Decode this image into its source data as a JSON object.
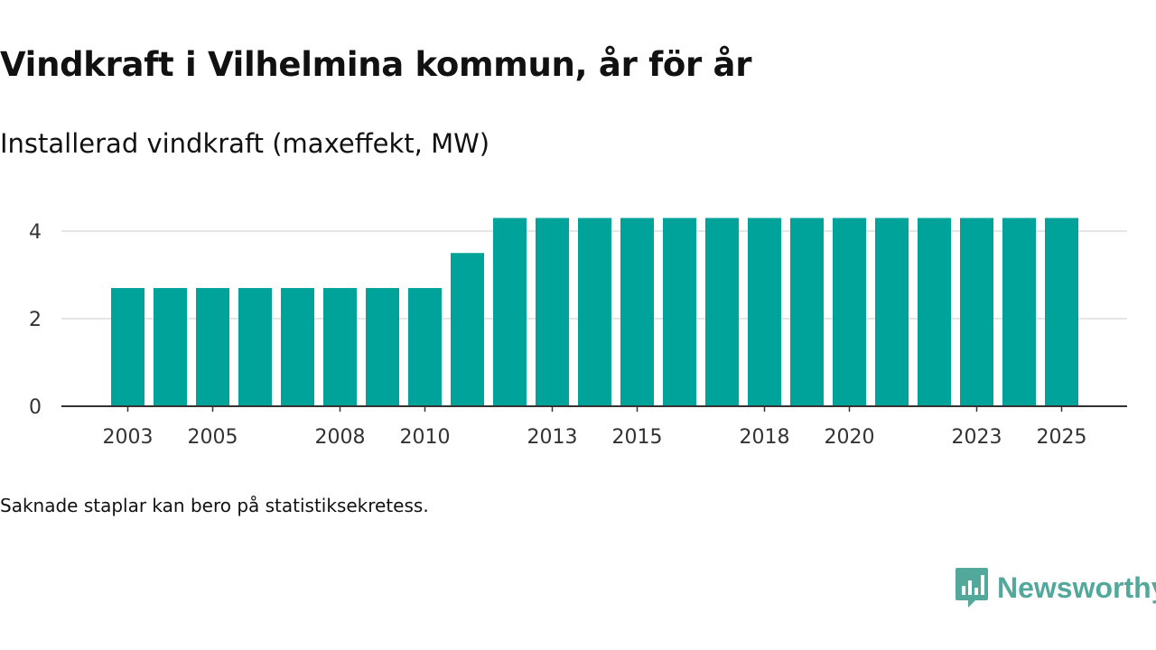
{
  "chart_data": {
    "type": "bar",
    "title": "Vindkraft i Vilhelmina kommun, år för år",
    "subtitle": "Installerad vindkraft (maxeffekt, MW)",
    "xlabel": "",
    "ylabel": "",
    "ylim": [
      0,
      4.5
    ],
    "yticks": [
      0,
      2,
      4
    ],
    "ytick_labels": [
      "0",
      "2",
      "4"
    ],
    "grid": true,
    "categories": [
      "2003",
      "2004",
      "2005",
      "2006",
      "2007",
      "2008",
      "2009",
      "2010",
      "2011",
      "2012",
      "2013",
      "2014",
      "2015",
      "2016",
      "2017",
      "2018",
      "2019",
      "2020",
      "2021",
      "2022",
      "2023",
      "2024",
      "2025"
    ],
    "values": [
      2.7,
      2.7,
      2.7,
      2.7,
      2.7,
      2.7,
      2.7,
      2.7,
      3.5,
      4.3,
      4.3,
      4.3,
      4.3,
      4.3,
      4.3,
      4.3,
      4.3,
      4.3,
      4.3,
      4.3,
      4.3,
      4.3,
      4.3
    ],
    "xtick_labels": [
      "2003",
      "2005",
      "2008",
      "2010",
      "2013",
      "2015",
      "2018",
      "2020",
      "2023",
      "2025"
    ],
    "bar_color": "#00a39a"
  },
  "footnote": "Saknade staplar kan bero på statistiksekretess.",
  "brand": {
    "name": "Newsworthy",
    "color": "#52a89a"
  }
}
